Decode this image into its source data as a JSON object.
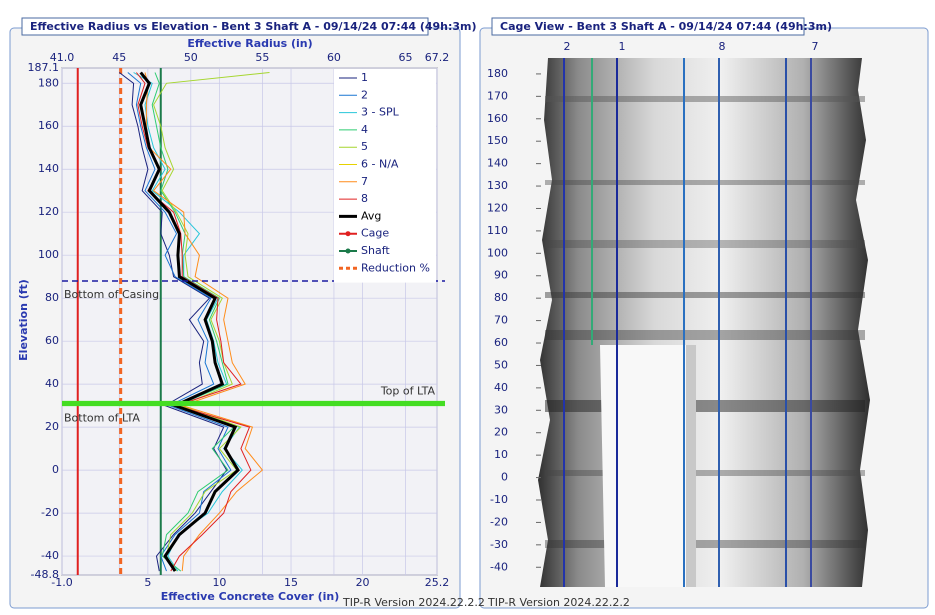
{
  "chart_data": [
    {
      "type": "line",
      "title": "Effective Radius vs Elevation - Bent 3 Shaft A - 09/14/24 07:44 (49h:3m)",
      "x_label": "Effective Radius (in)",
      "x2_label": "Effective Concrete Cover (in)",
      "y_label": "Elevation (ft)",
      "footer": "TIP-R Version 2024.22.2.2",
      "xlim": [
        41,
        67.2
      ],
      "xticks": [
        {
          "value": 41,
          "label": "41.0"
        },
        45,
        50,
        55,
        60,
        65,
        67.2
      ],
      "x2lim": [
        -1,
        25.2
      ],
      "x2ticks": [
        {
          "value": -1,
          "label": "-1.0"
        },
        5,
        10,
        15,
        20,
        25.2
      ],
      "ylim": [
        -48.8,
        187.1
      ],
      "yticks": [
        187.1,
        180,
        160,
        140,
        120,
        100,
        80,
        60,
        40,
        20,
        0,
        -20,
        -40,
        -48.8
      ],
      "grid": true,
      "elevation": [
        185,
        180,
        170,
        160,
        150,
        140,
        130,
        120,
        110,
        100,
        90,
        80,
        70,
        60,
        50,
        40,
        30,
        20,
        10,
        0,
        -10,
        -20,
        -30,
        -40,
        -47
      ],
      "series": [
        {
          "name": "1",
          "color": "#1a237e",
          "width": 1,
          "values": [
            45.0,
            46.0,
            45.9,
            46.3,
            46.6,
            47.0,
            46.6,
            48.0,
            47.9,
            48.5,
            48.8,
            51.3,
            49.9,
            50.9,
            50.6,
            50.8,
            48.2,
            52.3,
            51.6,
            52.5,
            51.4,
            50.3,
            48.8,
            47.6,
            47.8
          ]
        },
        {
          "name": "2",
          "color": "#1976d2",
          "width": 1,
          "values": [
            45.6,
            46.5,
            46.2,
            46.5,
            46.9,
            47.5,
            46.8,
            48.2,
            49.0,
            48.2,
            48.9,
            51.4,
            50.5,
            51.2,
            51.0,
            51.6,
            48.5,
            52.6,
            51.9,
            52.8,
            50.9,
            50.6,
            48.9,
            47.9,
            48.3
          ]
        },
        {
          "name": "3 - SPL",
          "color": "#26c6da",
          "width": 1,
          "values": [
            46.0,
            47.3,
            46.8,
            47.0,
            47.4,
            48.2,
            47.3,
            49.2,
            50.6,
            49.5,
            49.5,
            51.9,
            51.1,
            51.6,
            51.9,
            52.5,
            49.1,
            53.4,
            52.3,
            53.6,
            52.2,
            51.2,
            49.1,
            48.4,
            49.1
          ]
        },
        {
          "name": "4",
          "color": "#2ecc71",
          "width": 1,
          "values": [
            47.5,
            47.8,
            47.3,
            47.6,
            47.9,
            48.4,
            47.9,
            48.9,
            49.6,
            49.4,
            49.5,
            52.0,
            51.3,
            51.8,
            52.2,
            52.6,
            49.0,
            53.0,
            51.5,
            52.6,
            50.5,
            49.8,
            48.3,
            48.0,
            49.3
          ]
        },
        {
          "name": "5",
          "color": "#a5d62e",
          "width": 1,
          "values": [
            55.5,
            48.3,
            47.4,
            47.9,
            48.2,
            48.8,
            48.0,
            49.0,
            49.8,
            49.6,
            49.8,
            52.2,
            51.4,
            52.0,
            52.3,
            52.9,
            49.3,
            53.5,
            52.0,
            53.2,
            51.0,
            50.1,
            48.6,
            48.3,
            49.0
          ]
        },
        {
          "name": "6 - N/A",
          "color": "#e6d200",
          "width": 1,
          "values": [
            null,
            null,
            null,
            null,
            null,
            null,
            null,
            null,
            null,
            null,
            null,
            null,
            null,
            null,
            null,
            null,
            null,
            null,
            null,
            null,
            null,
            null,
            null,
            null,
            null
          ]
        },
        {
          "name": "7",
          "color": "#ff8c1a",
          "width": 1,
          "values": [
            46.8,
            47.0,
            46.9,
            46.9,
            47.1,
            48.6,
            47.4,
            49.5,
            49.6,
            50.6,
            50.3,
            52.6,
            52.3,
            52.6,
            52.9,
            53.8,
            49.4,
            54.3,
            53.8,
            55.0,
            53.2,
            52.0,
            50.6,
            49.5,
            49.4
          ]
        },
        {
          "name": "8",
          "color": "#e02020",
          "width": 1,
          "values": [
            46.2,
            46.8,
            46.3,
            46.6,
            47.0,
            47.9,
            47.0,
            48.8,
            49.3,
            49.4,
            49.4,
            51.9,
            51.8,
            52.1,
            52.3,
            53.5,
            49.0,
            54.1,
            53.5,
            54.2,
            52.8,
            52.3,
            50.8,
            49.2,
            48.6
          ]
        },
        {
          "name": "Avg",
          "color": "#000000",
          "width": 3,
          "values": [
            46.5,
            47.1,
            46.5,
            46.8,
            47.1,
            47.8,
            47.1,
            48.5,
            49.2,
            49.1,
            49.2,
            51.7,
            51.0,
            51.5,
            51.7,
            52.2,
            48.9,
            53.1,
            52.4,
            53.3,
            51.7,
            51.0,
            49.2,
            48.2,
            48.9
          ]
        }
      ],
      "markers": [
        {
          "name": "Cage",
          "color": "#e02020",
          "value": 42.1,
          "style": "solid"
        },
        {
          "name": "Shaft",
          "color": "#1b7a4a",
          "value": 47.9,
          "style": "solid"
        },
        {
          "name": "Reduction %",
          "color": "#f26522",
          "value": 45.1,
          "style": "dashed"
        }
      ],
      "hlines": [
        {
          "label": "Bottom of Casing",
          "value": 88,
          "color": "#1a1aa0",
          "style": "dashed",
          "label_position": "below-left"
        },
        {
          "label": "Top of LTA",
          "value": 31.5,
          "color": "#44dd22",
          "style": "solid",
          "label_position": "above-right"
        },
        {
          "label": "Bottom of LTA",
          "value": 30.5,
          "color": "#44dd22",
          "style": "solid",
          "label_position": "below-left"
        }
      ]
    },
    {
      "type": "cage-view",
      "title": "Cage View - Bent 3 Shaft A - 09/14/24 07:44 (49h:3m)",
      "footer": "TIP-R Version 2024.22.2.2",
      "ylim": [
        -48.8,
        187.1
      ],
      "yticks": [
        180,
        170,
        160,
        150,
        140,
        130,
        120,
        110,
        100,
        90,
        80,
        70,
        60,
        50,
        40,
        30,
        20,
        10,
        0,
        -10,
        -20,
        -30,
        -40
      ],
      "tube_labels": [
        "2",
        "1",
        "8",
        "7"
      ]
    }
  ]
}
